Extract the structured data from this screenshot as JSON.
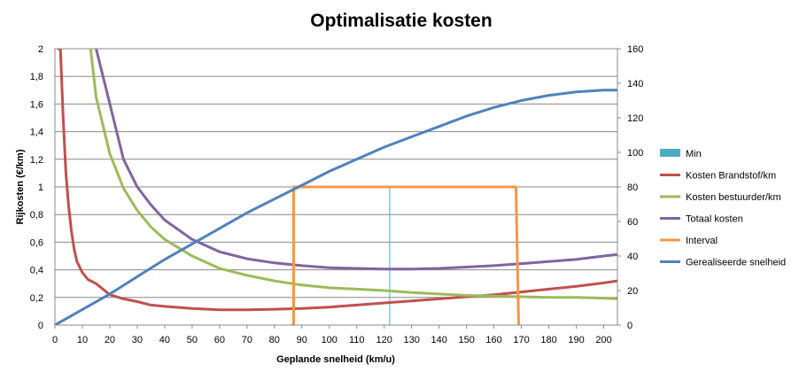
{
  "chart_data": {
    "type": "line",
    "title": "Optimalisatie kosten",
    "xlabel": "Geplande snelheid (km/u)",
    "ylabel": "Rijkosten (€/km)",
    "xlim": [
      0,
      205
    ],
    "ylim": [
      0,
      2
    ],
    "y2lim": [
      0,
      160
    ],
    "x_ticks": [
      "0",
      "10",
      "20",
      "30",
      "40",
      "50",
      "60",
      "70",
      "80",
      "90",
      "100",
      "110",
      "120",
      "130",
      "140",
      "150",
      "160",
      "170",
      "180",
      "190",
      "200"
    ],
    "y_ticks": [
      "0",
      "0,2",
      "0,4",
      "0,6",
      "0,8",
      "1",
      "1,2",
      "1,4",
      "1,6",
      "1,8",
      "2"
    ],
    "y2_ticks": [
      "0",
      "20",
      "40",
      "60",
      "80",
      "100",
      "120",
      "140",
      "160"
    ],
    "grid": true,
    "legend_position": "right",
    "series": [
      {
        "name": "Min",
        "color": "#4BACC6",
        "axis": "left",
        "x": [
          122,
          122
        ],
        "y": [
          0,
          1
        ]
      },
      {
        "name": "Kosten Brandstof/km",
        "color": "#C0504D",
        "axis": "left",
        "x": [
          1,
          2,
          3,
          4,
          5,
          6,
          7,
          8,
          10,
          12,
          15,
          20,
          25,
          30,
          35,
          40,
          50,
          60,
          70,
          80,
          90,
          100,
          110,
          120,
          130,
          140,
          150,
          160,
          170,
          180,
          190,
          200,
          205
        ],
        "y": [
          2,
          2,
          1.5,
          1.1,
          0.86,
          0.68,
          0.55,
          0.46,
          0.38,
          0.33,
          0.3,
          0.22,
          0.19,
          0.17,
          0.145,
          0.135,
          0.12,
          0.11,
          0.11,
          0.115,
          0.12,
          0.13,
          0.145,
          0.16,
          0.175,
          0.19,
          0.205,
          0.22,
          0.24,
          0.26,
          0.28,
          0.305,
          0.32
        ]
      },
      {
        "name": "Kosten bestuurder/km",
        "color": "#9BBB59",
        "axis": "left",
        "x": [
          13,
          15,
          20,
          25,
          30,
          35,
          40,
          50,
          60,
          70,
          80,
          90,
          100,
          110,
          120,
          130,
          140,
          150,
          160,
          170,
          180,
          190,
          200,
          205
        ],
        "y": [
          2,
          1.65,
          1.24,
          0.99,
          0.83,
          0.71,
          0.62,
          0.5,
          0.41,
          0.36,
          0.32,
          0.29,
          0.27,
          0.26,
          0.25,
          0.235,
          0.225,
          0.215,
          0.21,
          0.205,
          0.2,
          0.2,
          0.195,
          0.19
        ]
      },
      {
        "name": "Totaal kosten",
        "color": "#8064A2",
        "axis": "left",
        "x": [
          15,
          20,
          25,
          30,
          35,
          40,
          50,
          60,
          70,
          80,
          90,
          100,
          110,
          120,
          130,
          140,
          150,
          160,
          170,
          180,
          190,
          200,
          205
        ],
        "y": [
          2,
          1.6,
          1.2,
          1.0,
          0.87,
          0.76,
          0.62,
          0.53,
          0.48,
          0.45,
          0.43,
          0.415,
          0.41,
          0.405,
          0.405,
          0.41,
          0.42,
          0.43,
          0.445,
          0.46,
          0.475,
          0.5,
          0.51
        ]
      },
      {
        "name": "Interval",
        "color": "#F79646",
        "axis": "left",
        "x": [
          86,
          87,
          87,
          168,
          169,
          169
        ],
        "y": [
          0,
          0,
          1,
          1,
          0,
          0
        ]
      },
      {
        "name": "Gerealiseerde snelheid",
        "color": "#4F81BD",
        "axis": "right",
        "x": [
          0,
          10,
          20,
          30,
          40,
          50,
          60,
          70,
          80,
          90,
          100,
          110,
          120,
          130,
          140,
          150,
          160,
          170,
          180,
          190,
          200,
          205
        ],
        "y": [
          0,
          9,
          18,
          28,
          38,
          47,
          56,
          65,
          73,
          81,
          89,
          96,
          103,
          109,
          115,
          121,
          126,
          130,
          133,
          135,
          136,
          136
        ]
      }
    ]
  }
}
